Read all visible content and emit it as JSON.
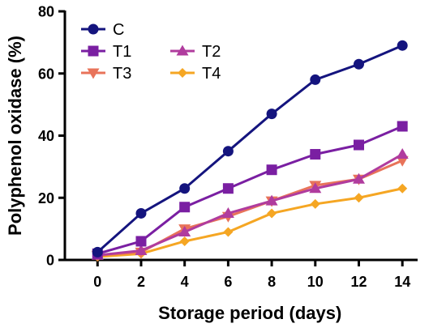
{
  "chart_data": {
    "type": "line",
    "title": "",
    "xlabel": "Storage period (days)",
    "ylabel": "Polyphenol oxidase (%)",
    "x": [
      0,
      2,
      4,
      6,
      8,
      10,
      12,
      14
    ],
    "xlim": [
      -1.5,
      14.7
    ],
    "ylim": [
      0,
      80
    ],
    "xticks": [
      0,
      2,
      4,
      6,
      8,
      10,
      12,
      14
    ],
    "yticks": [
      0,
      20,
      40,
      60,
      80
    ],
    "grid": false,
    "legend_position": "top-left",
    "series": [
      {
        "name": "C",
        "color": "#14147e",
        "marker": "circle",
        "values": [
          2.5,
          15,
          23,
          35,
          47,
          58,
          63,
          69
        ]
      },
      {
        "name": "T1",
        "color": "#7a1fa2",
        "marker": "square",
        "values": [
          2,
          6,
          17,
          23,
          29,
          34,
          37,
          43
        ]
      },
      {
        "name": "T2",
        "color": "#b03c9e",
        "marker": "triangle-up",
        "values": [
          1.5,
          3,
          9,
          15,
          19,
          23,
          26,
          34
        ]
      },
      {
        "name": "T3",
        "color": "#e8735a",
        "marker": "triangle-down",
        "values": [
          1.5,
          2.5,
          10,
          14,
          19,
          24,
          26,
          32
        ]
      },
      {
        "name": "T4",
        "color": "#f5a623",
        "marker": "diamond",
        "values": [
          1,
          2,
          6,
          9,
          15,
          18,
          20,
          23
        ]
      }
    ]
  }
}
